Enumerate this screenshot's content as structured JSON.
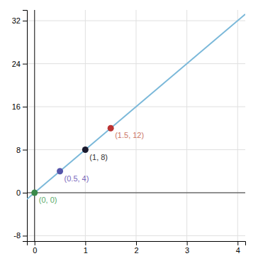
{
  "chart_data": {
    "type": "scatter",
    "xlim": [
      -0.15,
      4.15
    ],
    "ylim": [
      -9,
      34
    ],
    "xticks": [
      0,
      1,
      2,
      3,
      4
    ],
    "yticks": [
      -8,
      0,
      8,
      16,
      24,
      32
    ],
    "grid": true,
    "series": [
      {
        "type": "line",
        "color": "#7ab8d9",
        "x": [
          -0.15,
          4.15
        ],
        "values": [
          -1.2,
          33.2
        ]
      },
      {
        "type": "scatter",
        "marker": "circle",
        "colors": [
          "#3a8a4a",
          "#5555aa",
          "#1a1a2e",
          "#bb3333"
        ],
        "x": [
          0,
          0.5,
          1,
          1.5
        ],
        "values": [
          0,
          4,
          8,
          12
        ]
      }
    ],
    "annotations": [
      {
        "text": "(0, 0)",
        "x": 0,
        "y": 0,
        "color": "#5aaa6a"
      },
      {
        "text": "(0.5, 4)",
        "x": 0.5,
        "y": 4,
        "color": "#7766bb"
      },
      {
        "text": "(1, 8)",
        "x": 1,
        "y": 8,
        "color": "#333333"
      },
      {
        "text": "(1.5, 12)",
        "x": 1.5,
        "y": 12,
        "color": "#cc7766"
      }
    ]
  }
}
